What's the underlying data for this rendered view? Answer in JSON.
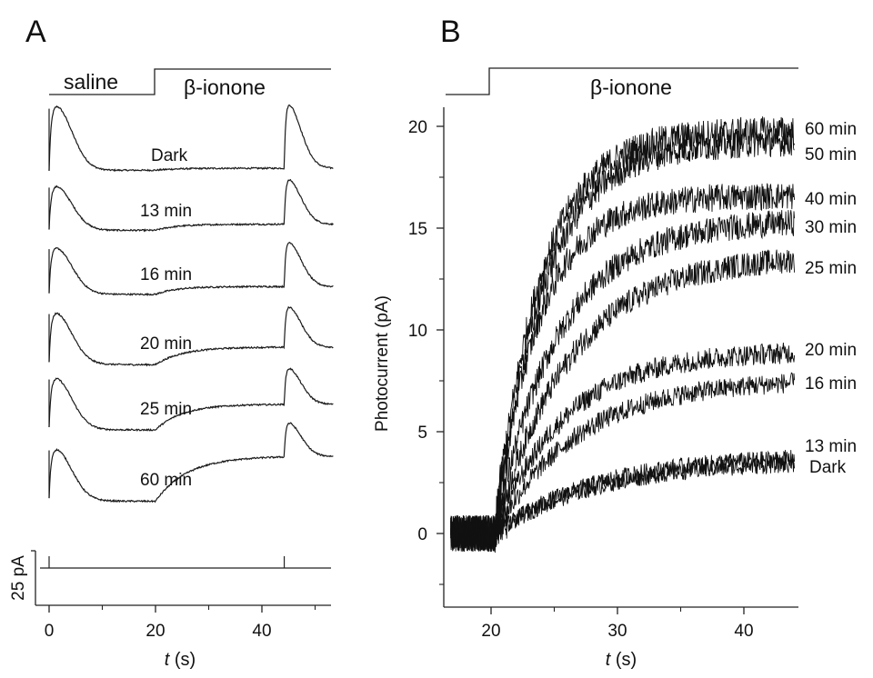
{
  "chart_data": [
    {
      "panel": "A",
      "type": "line",
      "stimulus": {
        "labels": [
          "saline",
          "β-ionone"
        ],
        "step_at_s": 20
      },
      "xlabel": "t (s)",
      "x_ticks": [
        0,
        20,
        40
      ],
      "xlim": [
        -1,
        54
      ],
      "scale_bar_label": "25 pA",
      "flash_times_s": [
        0,
        44.2
      ],
      "series": [
        {
          "name": "Dark",
          "peak1": 30,
          "pre_level": 0.3,
          "post_level": 1.2,
          "tau_rise": 4.0,
          "peak2": 30
        },
        {
          "name": "13 min",
          "peak1": 20,
          "pre_level": -0.6,
          "post_level": 2.2,
          "tau_rise": 4.0,
          "peak2": 21
        },
        {
          "name": "16 min",
          "peak1": 21,
          "pre_level": -0.8,
          "post_level": 2.8,
          "tau_rise": 4.0,
          "peak2": 21
        },
        {
          "name": "20 min",
          "peak1": 23,
          "pre_level": -1.4,
          "post_level": 6.7,
          "tau_rise": 5.0,
          "peak2": 19
        },
        {
          "name": "25 min",
          "peak1": 23,
          "pre_level": -1.3,
          "post_level": 10.5,
          "tau_rise": 5.0,
          "peak2": 17
        },
        {
          "name": "60 min",
          "peak1": 23,
          "pre_level": -1.5,
          "post_level": 19.2,
          "tau_rise": 6.0,
          "peak2": 16
        }
      ]
    },
    {
      "panel": "B",
      "type": "line",
      "stimulus": {
        "label": "β-ionone",
        "step_at_s": 20
      },
      "xlabel": "t (s)",
      "ylabel": "Photocurrent (pA)",
      "xlim": [
        16.8,
        44
      ],
      "ylim": [
        -3.5,
        21
      ],
      "x_ticks": [
        20,
        30,
        40
      ],
      "y_ticks": [
        0,
        5,
        10,
        15,
        20
      ],
      "onset_s": 20.3,
      "series": [
        {
          "name": "60 min",
          "final": 19.8,
          "tau": 3.6
        },
        {
          "name": "50 min",
          "final": 19.3,
          "tau": 3.9
        },
        {
          "name": "40 min",
          "final": 16.6,
          "tau": 3.5
        },
        {
          "name": "30 min",
          "final": 15.4,
          "tau": 5.0
        },
        {
          "name": "25 min",
          "final": 13.7,
          "tau": 6.0
        },
        {
          "name": "20 min",
          "final": 9.0,
          "tau": 5.5
        },
        {
          "name": "16 min",
          "final": 7.6,
          "tau": 6.5
        },
        {
          "name": "13 min",
          "final": 3.9,
          "tau": 8.0
        },
        {
          "name": "Dark",
          "final": 3.6,
          "tau": 8.0
        }
      ]
    }
  ]
}
